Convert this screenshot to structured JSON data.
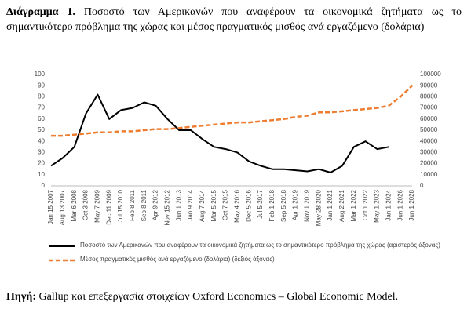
{
  "chart_data": {
    "type": "line",
    "title_label": "Διάγραμμα 1.",
    "title": "Ποσοστό των Αμερικανών που αναφέρουν τα οικονομικά ζητήματα ως το σημαντικότερο πρόβλημα της χώρας και μέσος πραγματικός μισθός ανά εργαζόμενο (δολάρια)",
    "categories": [
      "Jan 15 2007",
      "Aug 13 2007",
      "Mar 6 2008",
      "Oct 3 2008",
      "May 7 2009",
      "Dec 11 2009",
      "Jul 15 2010",
      "Feb 8 2011",
      "Sep 8 2011",
      "Apr 9 2012",
      "Nov 15 2012",
      "Jun 1 2013",
      "Jan 9 2014",
      "Aug 7 2014",
      "Mar 5 2015",
      "Oct 7 2015",
      "May 4 2016",
      "Dec 5 2016",
      "Jul 5 2017",
      "Feb 1 2018",
      "Sep 5 2018",
      "Apr 1 2019",
      "Nov 1 2019",
      "May 28 2020",
      "Jan 1 2021",
      "Aug 2 2021",
      "Mar 1 2022",
      "Oct 1 2022",
      "May 1 2023",
      "Jan 1 2024",
      "Jun 1 2026",
      "Jun 1 2028"
    ],
    "series": [
      {
        "name": "Ποσοστό των Αμερικανών που αναφέρουν τα οικονομικά ζητήματα ως το σημαντικότερο πρόβλημα της χώρας (αριστερός άξονας)",
        "color": "#000000",
        "dash": false,
        "axis": "y",
        "values": [
          18,
          25,
          35,
          65,
          82,
          60,
          68,
          70,
          75,
          72,
          60,
          50,
          50,
          42,
          35,
          33,
          30,
          22,
          18,
          15,
          15,
          14,
          13,
          15,
          12,
          18,
          35,
          40,
          33,
          35,
          null,
          null
        ]
      },
      {
        "name": "Μέσος πραγματικός μισθός ανά εργαζόμενο (δολάρια) (δεξιός άξονας)",
        "color": "#ed7d31",
        "dash": true,
        "axis": "y2",
        "values": [
          45000,
          45000,
          46000,
          47000,
          48000,
          48000,
          49000,
          49000,
          50000,
          51000,
          51000,
          52000,
          53000,
          54000,
          55000,
          56000,
          57000,
          57000,
          58000,
          59000,
          60000,
          62000,
          63000,
          66000,
          66000,
          67000,
          68000,
          69000,
          70000,
          72000,
          80000,
          90000
        ]
      }
    ],
    "ylim": [
      0,
      100
    ],
    "yticks": [
      0,
      10,
      20,
      30,
      40,
      50,
      60,
      70,
      80,
      90,
      100
    ],
    "y2lim": [
      0,
      100000
    ],
    "y2ticks": [
      0,
      10000,
      20000,
      30000,
      40000,
      50000,
      60000,
      70000,
      80000,
      90000,
      100000
    ],
    "grid": false,
    "source_label": "Πηγή:",
    "source": "Gallup και επεξεργασία στοιχείων Oxford Economics – Global Economic Model."
  }
}
